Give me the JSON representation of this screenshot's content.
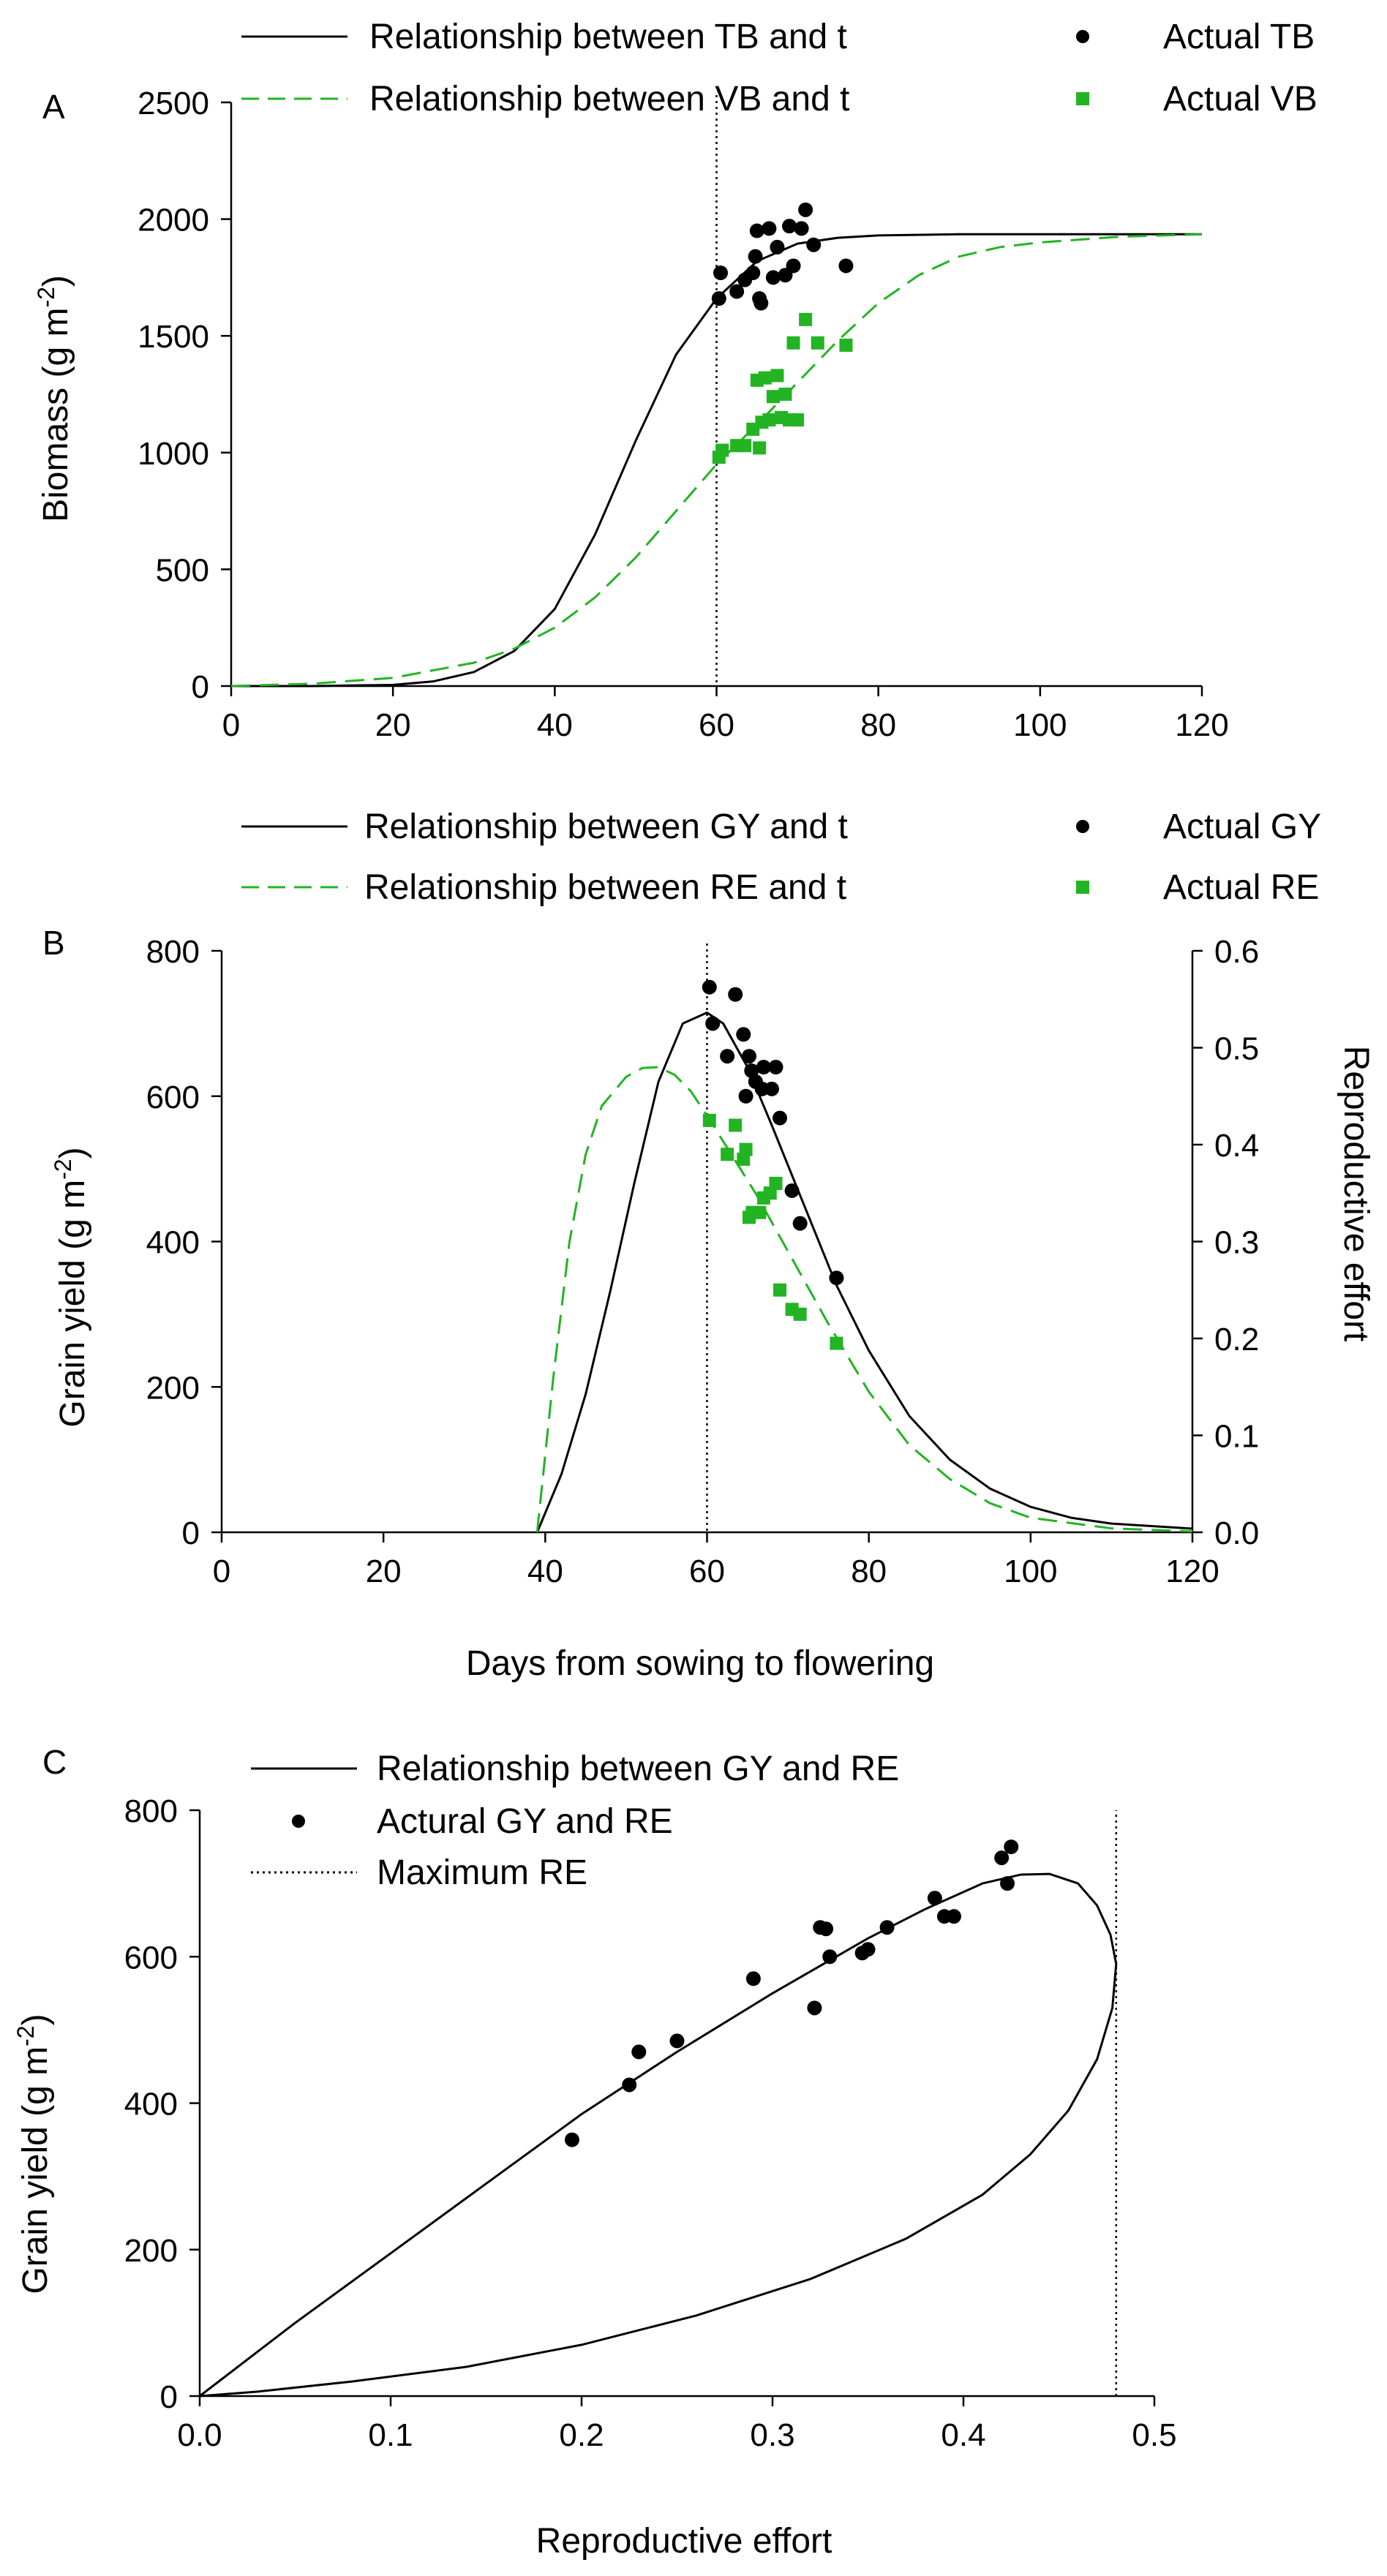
{
  "chart_data": [
    {
      "panel": "A",
      "type": "line",
      "xlim": [
        0,
        120
      ],
      "ylim": [
        0,
        2500
      ],
      "xticks": [
        "0",
        "20",
        "40",
        "60",
        "80",
        "100",
        "120"
      ],
      "yticks": [
        "0",
        "500",
        "1000",
        "1500",
        "2000",
        "2500"
      ],
      "xlabel": "",
      "ylabel": "Biomass (g m",
      "ylabel_sup": "-2",
      "ylabel_close": ")",
      "vline": 60,
      "legend": {
        "tb_curve": "Relationship between TB and t",
        "vb_curve": "Relationship between VB and t",
        "tb_actual": "Actual TB",
        "vb_actual": "Actual VB"
      },
      "series": [
        {
          "name": "Relationship between TB and t",
          "kind": "curve",
          "color": "#000000",
          "dash": "none",
          "x": [
            0,
            10,
            20,
            25,
            30,
            35,
            40,
            45,
            50,
            55,
            60,
            65,
            70,
            75,
            80,
            90,
            100,
            110,
            120
          ],
          "y": [
            0,
            0,
            5,
            20,
            60,
            150,
            330,
            650,
            1050,
            1420,
            1660,
            1820,
            1895,
            1920,
            1930,
            1935,
            1935,
            1935,
            1935
          ]
        },
        {
          "name": "Relationship between VB and t",
          "kind": "curve",
          "color": "#22b422",
          "dash": "dashed",
          "x": [
            0,
            10,
            20,
            30,
            35,
            40,
            45,
            50,
            55,
            60,
            65,
            70,
            75,
            80,
            85,
            90,
            95,
            100,
            110,
            120
          ],
          "y": [
            0,
            10,
            35,
            100,
            160,
            250,
            380,
            550,
            750,
            950,
            1120,
            1300,
            1480,
            1640,
            1760,
            1840,
            1880,
            1900,
            1925,
            1935
          ]
        },
        {
          "name": "Actual TB",
          "kind": "points",
          "marker": "circle",
          "color": "#000000",
          "x": [
            60.3,
            60.5,
            62.5,
            63.5,
            64.5,
            64.8,
            65,
            65.3,
            65.5,
            66.5,
            67,
            67.5,
            68.5,
            69,
            69.5,
            70.5,
            71,
            72,
            76
          ],
          "y": [
            1660,
            1770,
            1690,
            1740,
            1770,
            1840,
            1950,
            1660,
            1640,
            1960,
            1750,
            1880,
            1760,
            1970,
            1800,
            1960,
            2040,
            1890,
            1800
          ]
        },
        {
          "name": "Actual VB",
          "kind": "points",
          "marker": "square",
          "color": "#22b422",
          "x": [
            60.3,
            60.7,
            62.5,
            63.5,
            64.5,
            65,
            65.3,
            65.6,
            66,
            66.5,
            67,
            67.5,
            68,
            68.5,
            69,
            69.5,
            70,
            71,
            72.5,
            76
          ],
          "y": [
            980,
            1010,
            1030,
            1030,
            1100,
            1310,
            1020,
            1130,
            1320,
            1140,
            1240,
            1330,
            1150,
            1250,
            1140,
            1470,
            1140,
            1570,
            1470,
            1460
          ]
        }
      ]
    },
    {
      "panel": "B",
      "type": "line",
      "xlim": [
        0,
        120
      ],
      "ylim": [
        0,
        800
      ],
      "y2lim": [
        0,
        0.6
      ],
      "xticks": [
        "0",
        "20",
        "40",
        "60",
        "80",
        "100",
        "120"
      ],
      "yticks": [
        "0",
        "200",
        "400",
        "600",
        "800"
      ],
      "y2ticks": [
        "0.0",
        "0.1",
        "0.2",
        "0.3",
        "0.4",
        "0.5",
        "0.6"
      ],
      "xlabel": "Days from sowing to flowering",
      "ylabel": "Grain yield (g m",
      "ylabel_sup": "-2",
      "ylabel_close": ")",
      "y2label": "Reproductive effort",
      "vline": 60,
      "legend": {
        "gy_curve": "Relationship between GY and t",
        "re_curve": "Relationship between RE and t",
        "gy_actual": "Actual GY",
        "re_actual": "Actual RE"
      },
      "series": [
        {
          "name": "Relationship between GY and t",
          "kind": "curve",
          "axis": "left",
          "color": "#000000",
          "dash": "none",
          "x": [
            39,
            42,
            45,
            48,
            51,
            54,
            57,
            60,
            62,
            65,
            68,
            72,
            76,
            80,
            85,
            90,
            95,
            100,
            105,
            110,
            120
          ],
          "y": [
            0,
            80,
            190,
            330,
            480,
            620,
            700,
            715,
            700,
            640,
            560,
            450,
            340,
            250,
            160,
            100,
            60,
            35,
            20,
            12,
            5
          ]
        },
        {
          "name": "Relationship between RE and t",
          "kind": "curve",
          "axis": "right",
          "color": "#22b422",
          "dash": "dashed",
          "x": [
            39,
            41,
            43,
            45,
            47,
            50,
            52,
            54,
            56,
            58,
            60,
            63,
            66,
            70,
            75,
            80,
            85,
            90,
            95,
            100,
            110,
            120
          ],
          "y": [
            0,
            0.16,
            0.3,
            0.39,
            0.44,
            0.47,
            0.479,
            0.48,
            0.472,
            0.455,
            0.43,
            0.39,
            0.35,
            0.29,
            0.215,
            0.145,
            0.09,
            0.055,
            0.03,
            0.015,
            0.004,
            0.001
          ]
        },
        {
          "name": "Actual GY",
          "kind": "points",
          "axis": "left",
          "marker": "circle",
          "color": "#000000",
          "x": [
            60.3,
            60.7,
            62.5,
            63.5,
            64.5,
            64.8,
            65.2,
            65.5,
            66,
            66.8,
            67,
            68,
            68.5,
            69,
            70.5,
            71.5,
            76
          ],
          "y": [
            750,
            700,
            655,
            740,
            685,
            600,
            655,
            635,
            620,
            610,
            640,
            610,
            640,
            570,
            470,
            425,
            350
          ]
        },
        {
          "name": "Actual RE",
          "kind": "points",
          "axis": "right",
          "marker": "square",
          "color": "#22b422",
          "x": [
            60.3,
            62.5,
            63.5,
            64.5,
            64.8,
            65.2,
            65.6,
            66.5,
            67,
            67.8,
            68.5,
            69,
            70.5,
            71.5,
            76
          ],
          "y": [
            0.425,
            0.39,
            0.42,
            0.385,
            0.395,
            0.325,
            0.33,
            0.33,
            0.345,
            0.35,
            0.36,
            0.25,
            0.23,
            0.225,
            0.195
          ]
        }
      ]
    },
    {
      "panel": "C",
      "type": "line",
      "xlim": [
        0,
        0.5
      ],
      "ylim": [
        0,
        800
      ],
      "xticks": [
        "0.0",
        "0.1",
        "0.2",
        "0.3",
        "0.4",
        "0.5"
      ],
      "yticks": [
        "0",
        "200",
        "400",
        "600",
        "800"
      ],
      "xlabel": "Reproductive effort",
      "ylabel": "Grain yield (g m",
      "ylabel_sup": "-2",
      "ylabel_close": ")",
      "vline": 0.48,
      "legend": {
        "curve": "Relationship between GY and RE",
        "actual": "Actural GY and RE",
        "max": "Maximum RE"
      },
      "series": [
        {
          "name": "Relationship between GY and RE",
          "kind": "curve",
          "color": "#000000",
          "dash": "none",
          "x": [
            0,
            0.05,
            0.1,
            0.15,
            0.2,
            0.25,
            0.3,
            0.35,
            0.38,
            0.41,
            0.43,
            0.445,
            0.46,
            0.47,
            0.477,
            0.48,
            0.478,
            0.47,
            0.455,
            0.435,
            0.41,
            0.37,
            0.32,
            0.26,
            0.2,
            0.14,
            0.08,
            0.03,
            0
          ],
          "y": [
            0,
            100,
            195,
            290,
            385,
            470,
            550,
            625,
            665,
            700,
            712,
            713,
            700,
            670,
            630,
            590,
            530,
            460,
            390,
            330,
            275,
            215,
            160,
            110,
            70,
            40,
            20,
            6,
            0
          ]
        },
        {
          "name": "Actural GY and RE",
          "kind": "points",
          "marker": "circle",
          "color": "#000000",
          "x": [
            0.195,
            0.225,
            0.23,
            0.25,
            0.29,
            0.322,
            0.325,
            0.328,
            0.33,
            0.347,
            0.35,
            0.36,
            0.385,
            0.39,
            0.395,
            0.42,
            0.423,
            0.425
          ],
          "y": [
            350,
            425,
            470,
            485,
            570,
            530,
            640,
            638,
            600,
            605,
            610,
            640,
            680,
            655,
            655,
            735,
            700,
            750
          ]
        },
        {
          "name": "Maximum RE",
          "kind": "vline",
          "color": "#000000",
          "dash": "dotted",
          "x": [
            0.48,
            0.48
          ],
          "y": [
            0,
            800
          ]
        }
      ]
    }
  ],
  "panel_letters": [
    "A",
    "B",
    "C"
  ]
}
